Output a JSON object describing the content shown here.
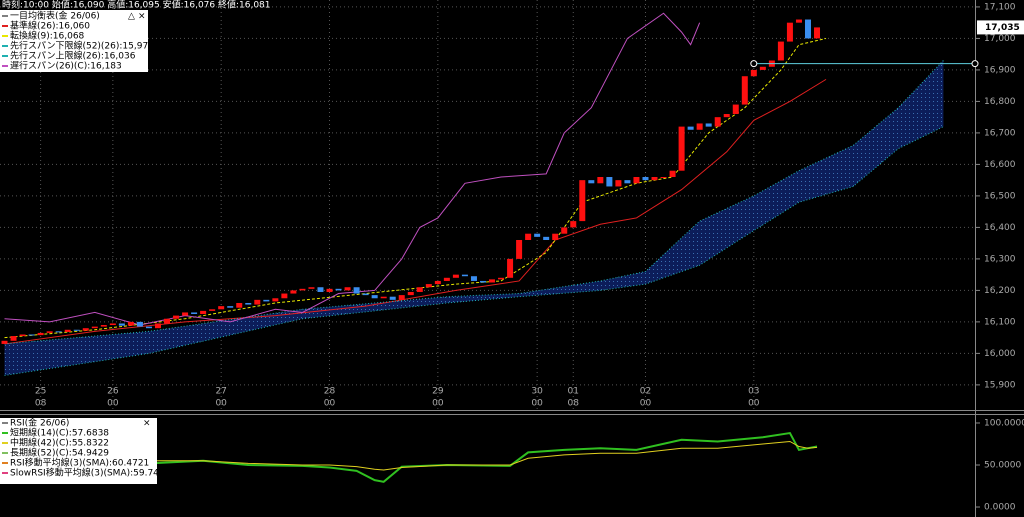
{
  "header": "時刻:10:00 始値:16,090 高値:16,095 安値:16,076 終値:16,081",
  "chart_data": [
    {
      "type": "candlestick",
      "title": "一目均衡表(金 26/06)",
      "xlim": [
        -0.5,
        107.5
      ],
      "xticks": [
        {
          "value": 4,
          "label": "25",
          "sublabel": "08"
        },
        {
          "value": 12,
          "label": "26",
          "sublabel": "00"
        },
        {
          "value": 24,
          "label": "27",
          "sublabel": "00"
        },
        {
          "value": 36,
          "label": "28",
          "sublabel": "00"
        },
        {
          "value": 48,
          "label": "29",
          "sublabel": "00"
        },
        {
          "value": 59,
          "label": "30",
          "sublabel": "00"
        },
        {
          "value": 63,
          "label": "01",
          "sublabel": "08"
        },
        {
          "value": 71,
          "label": "02",
          "sublabel": "00"
        },
        {
          "value": 83,
          "label": "03",
          "sublabel": "00"
        }
      ],
      "ylim": [
        15852,
        17122
      ],
      "yticks": [
        {
          "value": 15900,
          "label": "15,900"
        },
        {
          "value": 16000,
          "label": "16,000"
        },
        {
          "value": 16100,
          "label": "16,100"
        },
        {
          "value": 16200,
          "label": "16,200"
        },
        {
          "value": 16300,
          "label": "16,300"
        },
        {
          "value": 16400,
          "label": "16,400"
        },
        {
          "value": 16500,
          "label": "16,500"
        },
        {
          "value": 16600,
          "label": "16,600"
        },
        {
          "value": 16700,
          "label": "16,700"
        },
        {
          "value": 16800,
          "label": "16,800"
        },
        {
          "value": 16900,
          "label": "16,900"
        },
        {
          "value": 17000,
          "label": "17,000"
        },
        {
          "value": 17100,
          "label": "17,100"
        }
      ],
      "grid": true,
      "up_color": "#ff1010",
      "down_color": "#3a8ef0",
      "open": [
        16030,
        16040,
        16055,
        16060,
        16058,
        16065,
        16070,
        16068,
        16075,
        16072,
        16080,
        16085,
        16090,
        16095,
        16088,
        16100,
        16085,
        16080,
        16095,
        16110,
        16120,
        16130,
        16125,
        16135,
        16140,
        16150,
        16145,
        16160,
        16155,
        16170,
        16165,
        16175,
        16190,
        16200,
        16205,
        16210,
        16195,
        16205,
        16200,
        16210,
        16190,
        16185,
        16175,
        16180,
        16170,
        16185,
        16195,
        16210,
        16220,
        16230,
        16240,
        16250,
        16245,
        16230,
        16225,
        16235,
        16240,
        16300,
        16360,
        16380,
        16370,
        16360,
        16380,
        16400,
        16420,
        16550,
        16540,
        16560,
        16530,
        16550,
        16540,
        16560,
        16550,
        16560,
        16560,
        16580,
        16720,
        16710,
        16730,
        16720,
        16750,
        16760,
        16790,
        16880,
        16900,
        16910,
        16930,
        16990,
        17050,
        17060,
        17000
      ],
      "close": [
        16040,
        16055,
        16060,
        16058,
        16065,
        16070,
        16068,
        16075,
        16072,
        16080,
        16085,
        16090,
        16095,
        16088,
        16100,
        16085,
        16080,
        16095,
        16110,
        16120,
        16130,
        16125,
        16135,
        16140,
        16150,
        16145,
        16160,
        16155,
        16170,
        16165,
        16175,
        16190,
        16200,
        16205,
        16210,
        16195,
        16205,
        16200,
        16210,
        16190,
        16185,
        16175,
        16180,
        16170,
        16185,
        16195,
        16210,
        16220,
        16230,
        16240,
        16250,
        16245,
        16230,
        16225,
        16235,
        16240,
        16300,
        16360,
        16380,
        16370,
        16360,
        16380,
        16400,
        16420,
        16550,
        16540,
        16560,
        16530,
        16550,
        16540,
        16560,
        16550,
        16560,
        16560,
        16580,
        16720,
        16710,
        16730,
        16720,
        16750,
        16760,
        16790,
        16880,
        16900,
        16910,
        16930,
        16990,
        17050,
        17060,
        17000,
        17035
      ],
      "series": [
        {
          "name": "基準線(26):16,060",
          "color": "#e02020",
          "dash": "",
          "x": [
            0,
            10,
            20,
            30,
            40,
            50,
            57,
            61,
            66,
            70,
            75,
            80,
            83,
            87,
            91
          ],
          "values": [
            16030,
            16070,
            16100,
            16120,
            16150,
            16200,
            16230,
            16360,
            16410,
            16430,
            16520,
            16640,
            16740,
            16800,
            16870
          ]
        },
        {
          "name": "転換線(9):16,068",
          "color": "#e8e800",
          "dash": "3 2",
          "x": [
            0,
            10,
            20,
            30,
            40,
            50,
            55,
            60,
            64,
            70,
            74,
            78,
            82,
            86,
            88,
            91
          ],
          "values": [
            16050,
            16075,
            16110,
            16160,
            16190,
            16220,
            16230,
            16320,
            16480,
            16540,
            16560,
            16700,
            16780,
            16900,
            16980,
            17000
          ]
        },
        {
          "name": "先行スパン下限線(52)(26):15,972",
          "color": "#20b0b0",
          "dash": "1 2",
          "x": [
            0,
            16,
            33,
            49,
            57,
            66,
            71,
            77,
            83,
            88,
            94,
            99,
            104
          ],
          "values": [
            15930,
            16000,
            16110,
            16160,
            16180,
            16200,
            16220,
            16280,
            16390,
            16480,
            16530,
            16650,
            16720
          ]
        },
        {
          "name": "先行スパン上限線(26):16,036",
          "color": "#20b0b0",
          "dash": "1 2",
          "x": [
            0,
            16,
            33,
            49,
            57,
            66,
            71,
            77,
            83,
            88,
            94,
            99,
            104
          ],
          "values": [
            16030,
            16070,
            16140,
            16180,
            16190,
            16230,
            16260,
            16420,
            16500,
            16580,
            16660,
            16780,
            16930
          ]
        },
        {
          "name": "遅行スパン(26)(C):16,183",
          "color": "#c050c0",
          "dash": "",
          "x": [
            0,
            5,
            10,
            15,
            20,
            25,
            30,
            33,
            37,
            41,
            44,
            46,
            48,
            51,
            55,
            60,
            62,
            65,
            69,
            73,
            75,
            76,
            77
          ],
          "values": [
            16110,
            16100,
            16130,
            16090,
            16120,
            16100,
            16140,
            16130,
            16190,
            16200,
            16300,
            16400,
            16430,
            16540,
            16560,
            16570,
            16700,
            16780,
            17000,
            17080,
            17020,
            16980,
            17050
          ]
        }
      ],
      "cloud_series": [
        2,
        3
      ],
      "cloud_color": "#0c1d5a",
      "last_price": {
        "value": 17035,
        "label": "17,035"
      },
      "price_line": 16920
    },
    {
      "type": "line",
      "title": "RSI(金 26/06)",
      "xlim": [
        -0.5,
        107.5
      ],
      "ylim": [
        -9.5,
        109.5
      ],
      "yticks": [
        {
          "value": 0,
          "label": "0.0000"
        },
        {
          "value": 50,
          "label": "50.0000"
        },
        {
          "value": 100,
          "label": "100.0000"
        }
      ],
      "series": [
        {
          "name": "短期線(14)(C):57.6838",
          "color": "#30c020",
          "width": 2,
          "x": [
            16,
            22,
            27,
            33,
            36,
            39,
            41,
            42,
            44,
            49,
            56,
            58,
            62,
            66,
            70,
            75,
            79,
            84,
            87,
            88,
            89,
            90
          ],
          "values": [
            52,
            55,
            50,
            49,
            47,
            43,
            32,
            30,
            48,
            50,
            49,
            65,
            68,
            70,
            68,
            80,
            78,
            83,
            88,
            68,
            70,
            72
          ]
        },
        {
          "name": "中期線(42)(C):55.8322",
          "color": "#e0d020",
          "width": 1,
          "x": [
            16,
            22,
            27,
            33,
            36,
            39,
            41,
            42,
            44,
            49,
            56,
            58,
            62,
            66,
            70,
            75,
            79,
            84,
            87,
            88,
            89,
            90
          ],
          "values": [
            55,
            55,
            52,
            50,
            50,
            48,
            45,
            44,
            47,
            50,
            50,
            58,
            62,
            64,
            64,
            70,
            70,
            75,
            78,
            72,
            70,
            71
          ]
        },
        {
          "name": "長期線(52)(C):54.9429",
          "color": "#80c060"
        },
        {
          "name": "RSI移動平均線(3)(SMA):60.4721",
          "color": "#e08020"
        },
        {
          "name": "SlowRSI移動平均線(3)(SMA):59.7474",
          "color": "#e04080"
        }
      ]
    }
  ]
}
